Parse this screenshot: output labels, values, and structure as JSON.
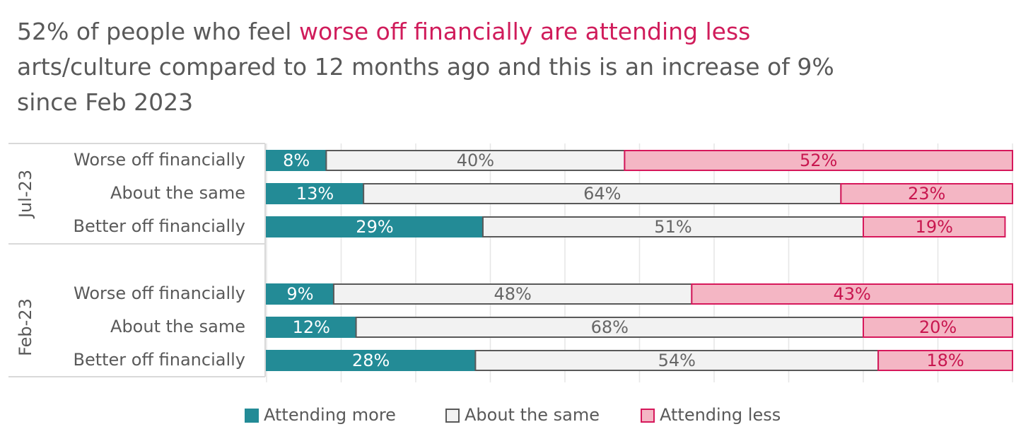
{
  "chart_data": {
    "type": "stacked-bar-horizontal",
    "title_parts": [
      {
        "text": "52% of people who feel "
      },
      {
        "text": "worse off financially are attending less",
        "color": "#d01c5b"
      },
      {
        "text": " arts/culture compared to 12 months ago and this is an increase of 9% since Feb 2023"
      }
    ],
    "groups": [
      {
        "name": "Jul-23",
        "categories": [
          "Worse off financially",
          "About the same",
          "Better off financially"
        ]
      },
      {
        "name": "Feb-23",
        "categories": [
          "Worse off financially",
          "About the same",
          "Better off financially"
        ]
      }
    ],
    "series": [
      {
        "name": "Attending more",
        "color": "#238b96",
        "stroke": "#238b96",
        "label_color": "#ffffff",
        "values": [
          [
            8,
            13,
            29
          ],
          [
            9,
            12,
            28
          ]
        ],
        "value_labels": [
          [
            "8%",
            "13%",
            "29%"
          ],
          [
            "9%",
            "12%",
            "28%"
          ]
        ]
      },
      {
        "name": "About the same",
        "color": "#f2f2f2",
        "stroke": "#595959",
        "label_color": "#666666",
        "values": [
          [
            40,
            64,
            51
          ],
          [
            48,
            68,
            54
          ]
        ],
        "value_labels": [
          [
            "40%",
            "64%",
            "51%"
          ],
          [
            "48%",
            "68%",
            "54%"
          ]
        ]
      },
      {
        "name": "Attending less",
        "color": "#f4b6c4",
        "stroke": "#d6185b",
        "label_color": "#c8164f",
        "values": [
          [
            52,
            23,
            19
          ],
          [
            43,
            20,
            18
          ]
        ],
        "value_labels": [
          [
            "52%",
            "23%",
            "19%"
          ],
          [
            "43%",
            "20%",
            "18%"
          ]
        ]
      }
    ],
    "xlim": [
      0,
      100
    ],
    "xticks": [
      0,
      10,
      20,
      30,
      40,
      50,
      60,
      70,
      80,
      90,
      100
    ],
    "grid": true,
    "legend": "bottom"
  }
}
